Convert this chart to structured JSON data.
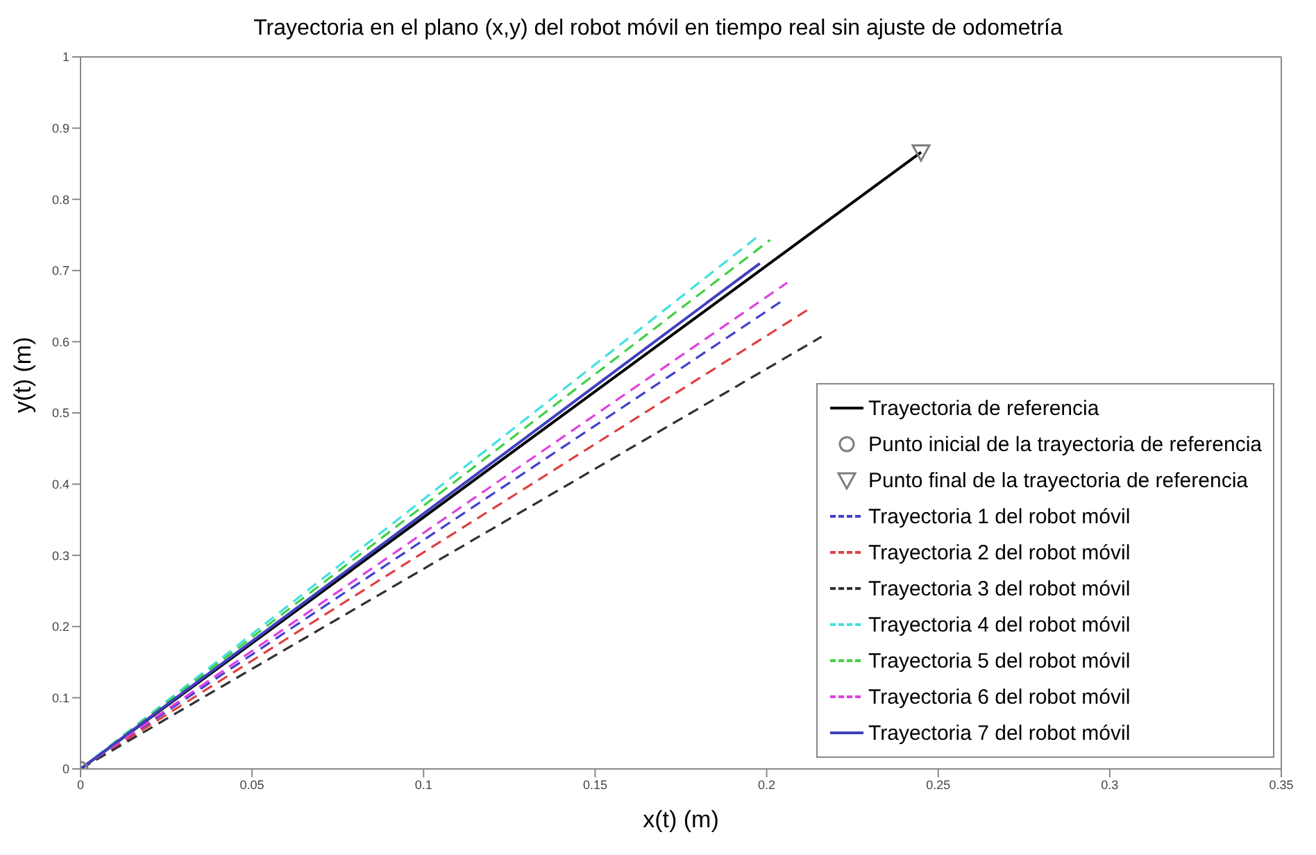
{
  "chart_data": {
    "type": "line",
    "title": "Trayectoria en el plano (x,y) del robot móvil en tiempo real sin ajuste de odometría",
    "xlabel": "x(t) (m)",
    "ylabel": "y(t) (m)",
    "xlim": [
      0,
      0.35
    ],
    "xticks": [
      0,
      0.05,
      0.1,
      0.15,
      0.2,
      0.25,
      0.3,
      0.35
    ],
    "ylim": [
      0,
      1
    ],
    "yticks": [
      0,
      0.1,
      0.2,
      0.3,
      0.4,
      0.5,
      0.6,
      0.7,
      0.8,
      0.9,
      1
    ],
    "grid": false,
    "legend": "bottom right",
    "series": [
      {
        "name": "Trayectoria de referencia",
        "color": "#000000",
        "line_style": "solid",
        "x": [
          0,
          0.245
        ],
        "values": [
          0,
          0.866
        ]
      },
      {
        "name": "Punto inicial de la trayectoria de referencia",
        "type": "scatter",
        "marker": "circle",
        "color": "#7f7f7f",
        "x": [
          0
        ],
        "values": [
          0
        ]
      },
      {
        "name": "Punto final de la trayectoria de referencia",
        "type": "scatter",
        "marker": "triangle",
        "color": "#7f7f7f",
        "x": [
          0.245
        ],
        "values": [
          0.866
        ]
      },
      {
        "name": "Trayectoria 1 del robot móvil",
        "color": "#4040d0",
        "line_style": "dashed",
        "x": [
          0,
          0.205
        ],
        "values": [
          0,
          0.659
        ]
      },
      {
        "name": "Trayectoria 2 del robot móvil",
        "color": "#e04040",
        "line_style": "dashed",
        "x": [
          0,
          0.213
        ],
        "values": [
          0,
          0.648
        ]
      },
      {
        "name": "Trayectoria 3 del robot móvil",
        "color": "#303030",
        "line_style": "dashed",
        "x": [
          0,
          0.216
        ],
        "values": [
          0,
          0.607
        ]
      },
      {
        "name": "Trayectoria 4 del robot móvil",
        "color": "#40e0e0",
        "line_style": "dashed",
        "x": [
          0,
          0.198
        ],
        "values": [
          0,
          0.75
        ]
      },
      {
        "name": "Trayectoria 5 del robot móvil",
        "color": "#40d040",
        "line_style": "dashed",
        "x": [
          0,
          0.201
        ],
        "values": [
          0,
          0.743
        ]
      },
      {
        "name": "Trayectoria 6 del robot móvil",
        "color": "#e040e0",
        "line_style": "dashed",
        "x": [
          0,
          0.206
        ],
        "values": [
          0,
          0.683
        ]
      },
      {
        "name": "Trayectoria 7 del robot móvil",
        "color": "#4040c0",
        "line_style": "solid",
        "x": [
          0,
          0.198
        ],
        "values": [
          0,
          0.71
        ]
      }
    ]
  }
}
